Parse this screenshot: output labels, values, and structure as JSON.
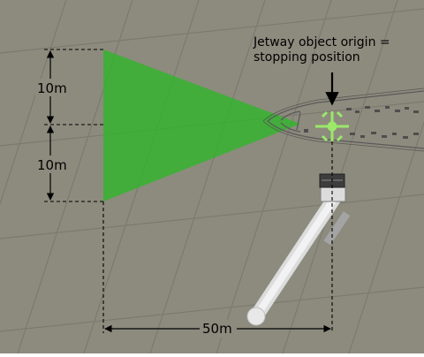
{
  "annotation": {
    "line1": "Jetway object origin =",
    "line2": "stopping position"
  },
  "dimensions": {
    "upper": "10m",
    "lower": "10m",
    "horizontal": "50m"
  },
  "colors": {
    "tarmac": "#8d8b7e",
    "panel_line": "#6d6b60",
    "cone": "#2fb52a",
    "origin_marker": "#9be86a",
    "jetway": "#e2e2e2",
    "dimension_line": "#000000",
    "text": "#000000"
  }
}
